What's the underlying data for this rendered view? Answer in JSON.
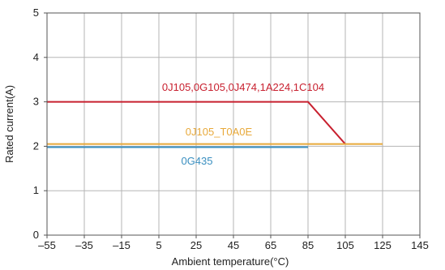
{
  "chart_data": {
    "type": "line",
    "title": "",
    "xlabel": "Ambient temperature(°C)",
    "ylabel": "Rated current(A)",
    "xlim": [
      -55,
      145
    ],
    "ylim": [
      0,
      5
    ],
    "x_ticks": [
      -55,
      -35,
      -15,
      5,
      25,
      45,
      65,
      85,
      105,
      125,
      145
    ],
    "x_tick_labels": [
      "–55",
      "–35",
      "–15",
      "5",
      "25",
      "45",
      "65",
      "85",
      "105",
      "125",
      "145"
    ],
    "y_ticks": [
      0,
      1,
      2,
      3,
      4,
      5
    ],
    "y_tick_labels": [
      "0",
      "1",
      "2",
      "3",
      "4",
      "5"
    ],
    "grid": true,
    "series": [
      {
        "name": "0J105,0G105,0J474,1A224,1C104",
        "color": "#c8202f",
        "points": [
          [
            -55,
            3.0
          ],
          [
            85,
            3.0
          ],
          [
            105,
            2.05
          ]
        ]
      },
      {
        "name": "0J105_T0A0E",
        "color": "#e8a93a",
        "points": [
          [
            -55,
            2.05
          ],
          [
            125,
            2.05
          ]
        ]
      },
      {
        "name": "0G435",
        "color": "#3a8fc0",
        "points": [
          [
            -55,
            1.98
          ],
          [
            85,
            1.98
          ]
        ]
      }
    ]
  }
}
